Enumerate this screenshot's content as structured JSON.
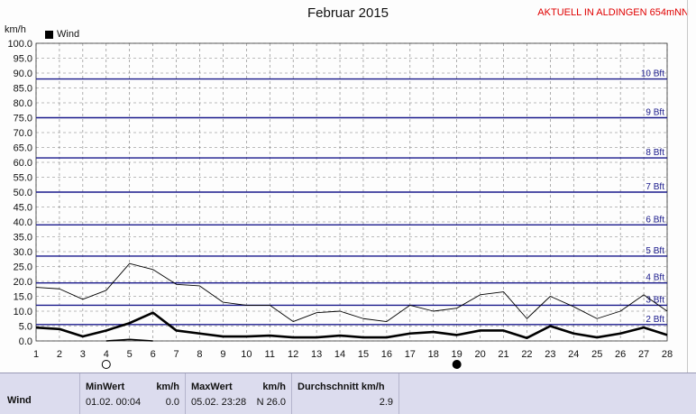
{
  "header": {
    "title": "Februar 2015",
    "station": "AKTUELL IN ALDINGEN 654mNN",
    "unit": "km/h",
    "legend_label": "Wind"
  },
  "chart_data": {
    "type": "line",
    "title": "Februar 2015",
    "ylabel": "km/h",
    "xlim": [
      1,
      28
    ],
    "ylim": [
      0,
      100
    ],
    "x_ticks": [
      "1",
      "2",
      "3",
      "4",
      "5",
      "6",
      "7",
      "8",
      "9",
      "10",
      "11",
      "12",
      "13",
      "14",
      "15",
      "16",
      "17",
      "18",
      "19",
      "20",
      "21",
      "22",
      "23",
      "24",
      "25",
      "26",
      "27",
      "28"
    ],
    "y_ticks": [
      "0.0",
      "5.0",
      "10.0",
      "15.0",
      "20.0",
      "25.0",
      "30.0",
      "35.0",
      "40.0",
      "45.0",
      "50.0",
      "55.0",
      "60.0",
      "65.0",
      "70.0",
      "75.0",
      "80.0",
      "85.0",
      "90.0",
      "95.0",
      "100.0"
    ],
    "grid": true,
    "legend_position": "top-left",
    "x": [
      1,
      2,
      3,
      4,
      5,
      6,
      7,
      8,
      9,
      10,
      11,
      12,
      13,
      14,
      15,
      16,
      17,
      18,
      19,
      20,
      21,
      22,
      23,
      24,
      25,
      26,
      27,
      28
    ],
    "series": [
      {
        "name": "Wind",
        "style": "thick",
        "values": [
          4.5,
          4.0,
          1.5,
          3.5,
          6.0,
          9.5,
          3.5,
          2.5,
          1.5,
          1.5,
          1.8,
          1.2,
          1.2,
          1.8,
          1.2,
          1.2,
          2.5,
          3.0,
          2.0,
          3.5,
          3.5,
          1.0,
          5.0,
          2.5,
          1.2,
          2.5,
          4.5,
          2.0
        ]
      },
      {
        "style": "thin",
        "values": [
          18.0,
          17.5,
          14.0,
          17.0,
          26.0,
          24.0,
          19.0,
          18.5,
          13.0,
          12.0,
          12.0,
          6.5,
          9.5,
          10.0,
          7.5,
          6.5,
          12.0,
          10.0,
          11.0,
          15.5,
          16.5,
          7.5,
          15.0,
          11.5,
          7.5,
          10.0,
          15.5,
          10.0
        ]
      },
      {
        "style": "min",
        "values": [
          null,
          null,
          null,
          0.0,
          0.5,
          0.0,
          null,
          null,
          null,
          null,
          null,
          null,
          null,
          null,
          null,
          null,
          null,
          null,
          null,
          null,
          null,
          null,
          null,
          null,
          null,
          null,
          null,
          null
        ]
      }
    ],
    "beaufort_lines": [
      {
        "label": "2 Bft",
        "value": 5.5
      },
      {
        "label": "3 Bft",
        "value": 12.0
      },
      {
        "label": "4 Bft",
        "value": 19.5
      },
      {
        "label": "5 Bft",
        "value": 28.5
      },
      {
        "label": "6 Bft",
        "value": 39.0
      },
      {
        "label": "7 Bft",
        "value": 50.0
      },
      {
        "label": "8 Bft",
        "value": 61.5
      },
      {
        "label": "9 Bft",
        "value": 75.0
      },
      {
        "label": "10 Bft",
        "value": 88.0
      }
    ],
    "moon_phases": [
      {
        "day": 4,
        "phase": "full"
      },
      {
        "day": 19,
        "phase": "new"
      }
    ],
    "colors": {
      "wind": "#000000",
      "beaufort": "#1a1a8c",
      "grid": "#7a7a7a",
      "station": "#e00000"
    }
  },
  "stats": {
    "row_label": "Wind",
    "min": {
      "header": "MinWert",
      "unit": "km/h",
      "date": "01.02.  00:04",
      "value": "0.0"
    },
    "max": {
      "header": "MaxWert",
      "unit": "km/h",
      "date": "05.02.  23:28",
      "value": "N 26.0"
    },
    "avg": {
      "header": "Durchschnitt km/h",
      "value": "2.9"
    }
  }
}
